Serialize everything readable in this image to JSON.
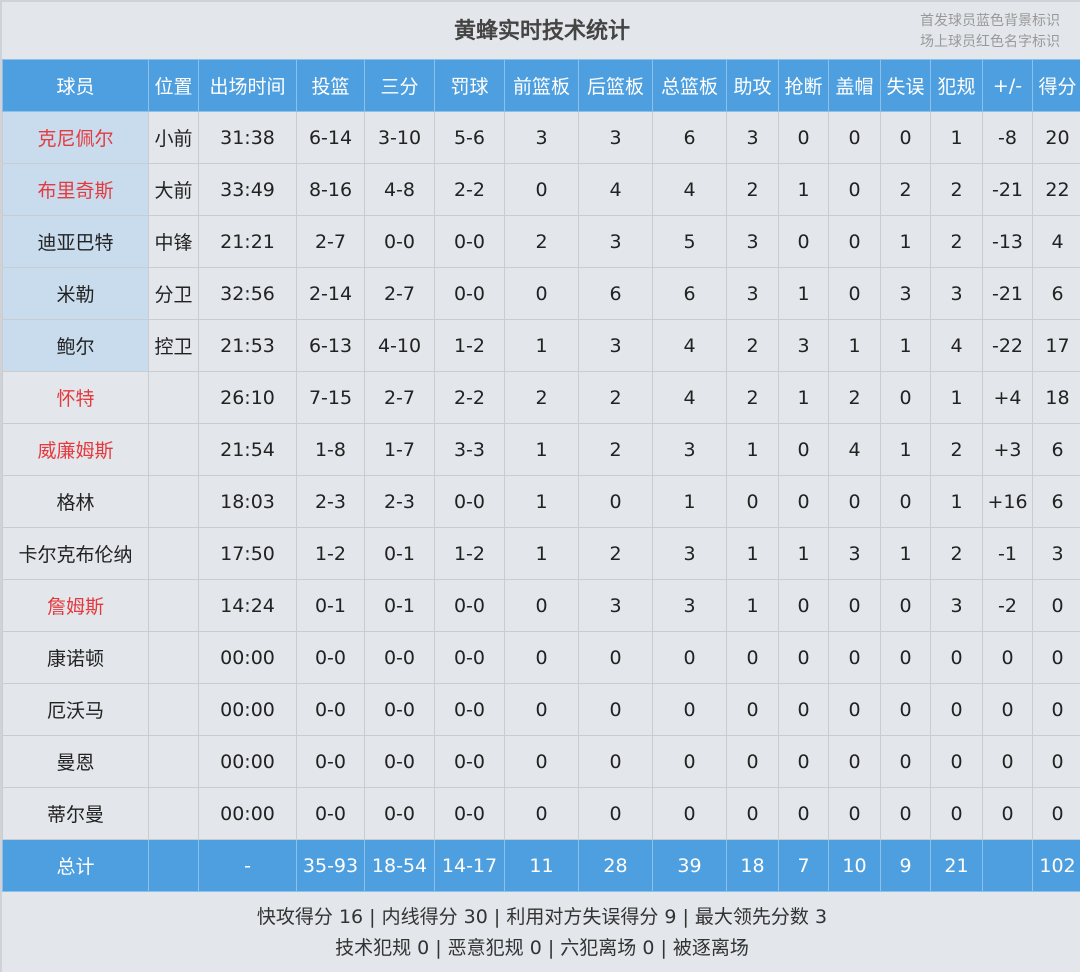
{
  "title": "黄蜂实时技术统计",
  "legend": [
    "首发球员蓝色背景标识",
    "场上球员红色名字标识"
  ],
  "colors": {
    "header_bg": "#4e9fe0",
    "starter_bg": "#c9dced",
    "on_court_name": "#e43a3f",
    "page_bg": "#e3e6ea"
  },
  "columns": [
    "球员",
    "位置",
    "出场时间",
    "投篮",
    "三分",
    "罚球",
    "前篮板",
    "后篮板",
    "总篮板",
    "助攻",
    "抢断",
    "盖帽",
    "失误",
    "犯规",
    "+/-",
    "得分"
  ],
  "players": [
    {
      "name": "克尼佩尔",
      "starter": true,
      "on_court": true,
      "stats": [
        "小前",
        "31:38",
        "6-14",
        "3-10",
        "5-6",
        "3",
        "3",
        "6",
        "3",
        "0",
        "0",
        "0",
        "1",
        "-8",
        "20"
      ]
    },
    {
      "name": "布里奇斯",
      "starter": true,
      "on_court": true,
      "stats": [
        "大前",
        "33:49",
        "8-16",
        "4-8",
        "2-2",
        "0",
        "4",
        "4",
        "2",
        "1",
        "0",
        "2",
        "2",
        "-21",
        "22"
      ]
    },
    {
      "name": "迪亚巴特",
      "starter": true,
      "on_court": false,
      "stats": [
        "中锋",
        "21:21",
        "2-7",
        "0-0",
        "0-0",
        "2",
        "3",
        "5",
        "3",
        "0",
        "0",
        "1",
        "2",
        "-13",
        "4"
      ]
    },
    {
      "name": "米勒",
      "starter": true,
      "on_court": false,
      "stats": [
        "分卫",
        "32:56",
        "2-14",
        "2-7",
        "0-0",
        "0",
        "6",
        "6",
        "3",
        "1",
        "0",
        "3",
        "3",
        "-21",
        "6"
      ]
    },
    {
      "name": "鲍尔",
      "starter": true,
      "on_court": false,
      "stats": [
        "控卫",
        "21:53",
        "6-13",
        "4-10",
        "1-2",
        "1",
        "3",
        "4",
        "2",
        "3",
        "1",
        "1",
        "4",
        "-22",
        "17"
      ]
    },
    {
      "name": "怀特",
      "starter": false,
      "on_court": true,
      "stats": [
        "",
        "26:10",
        "7-15",
        "2-7",
        "2-2",
        "2",
        "2",
        "4",
        "2",
        "1",
        "2",
        "0",
        "1",
        "+4",
        "18"
      ]
    },
    {
      "name": "威廉姆斯",
      "starter": false,
      "on_court": true,
      "stats": [
        "",
        "21:54",
        "1-8",
        "1-7",
        "3-3",
        "1",
        "2",
        "3",
        "1",
        "0",
        "4",
        "1",
        "2",
        "+3",
        "6"
      ]
    },
    {
      "name": "格林",
      "starter": false,
      "on_court": false,
      "stats": [
        "",
        "18:03",
        "2-3",
        "2-3",
        "0-0",
        "1",
        "0",
        "1",
        "0",
        "0",
        "0",
        "0",
        "1",
        "+16",
        "6"
      ]
    },
    {
      "name": "卡尔克布伦纳",
      "starter": false,
      "on_court": false,
      "stats": [
        "",
        "17:50",
        "1-2",
        "0-1",
        "1-2",
        "1",
        "2",
        "3",
        "1",
        "1",
        "3",
        "1",
        "2",
        "-1",
        "3"
      ]
    },
    {
      "name": "詹姆斯",
      "starter": false,
      "on_court": true,
      "stats": [
        "",
        "14:24",
        "0-1",
        "0-1",
        "0-0",
        "0",
        "3",
        "3",
        "1",
        "0",
        "0",
        "0",
        "3",
        "-2",
        "0"
      ]
    },
    {
      "name": "康诺顿",
      "starter": false,
      "on_court": false,
      "stats": [
        "",
        "00:00",
        "0-0",
        "0-0",
        "0-0",
        "0",
        "0",
        "0",
        "0",
        "0",
        "0",
        "0",
        "0",
        "0",
        "0"
      ]
    },
    {
      "name": "厄沃马",
      "starter": false,
      "on_court": false,
      "stats": [
        "",
        "00:00",
        "0-0",
        "0-0",
        "0-0",
        "0",
        "0",
        "0",
        "0",
        "0",
        "0",
        "0",
        "0",
        "0",
        "0"
      ]
    },
    {
      "name": "曼恩",
      "starter": false,
      "on_court": false,
      "stats": [
        "",
        "00:00",
        "0-0",
        "0-0",
        "0-0",
        "0",
        "0",
        "0",
        "0",
        "0",
        "0",
        "0",
        "0",
        "0",
        "0"
      ]
    },
    {
      "name": "蒂尔曼",
      "starter": false,
      "on_court": false,
      "stats": [
        "",
        "00:00",
        "0-0",
        "0-0",
        "0-0",
        "0",
        "0",
        "0",
        "0",
        "0",
        "0",
        "0",
        "0",
        "0",
        "0"
      ]
    }
  ],
  "total": [
    "总计",
    "",
    "-",
    "35-93",
    "18-54",
    "14-17",
    "11",
    "28",
    "39",
    "18",
    "7",
    "10",
    "9",
    "21",
    "",
    "102"
  ],
  "footer": [
    "快攻得分 16 | 内线得分 30 | 利用对方失误得分 9 | 最大领先分数 3",
    "技术犯规 0 | 恶意犯规 0 | 六犯离场 0 | 被逐离场"
  ]
}
